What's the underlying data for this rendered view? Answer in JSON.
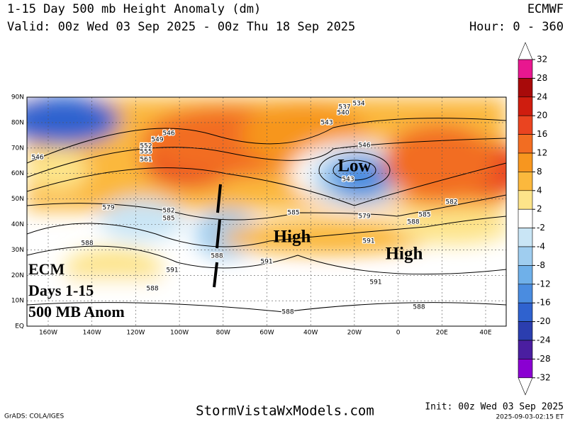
{
  "header": {
    "title": "1-15 Day 500 mb Height Anomaly (dm)",
    "valid": "Valid: 00z Wed 03 Sep 2025 - 00z Thu 18 Sep 2025",
    "model": "ECMWF",
    "hours": "Hour: 0 - 360"
  },
  "map": {
    "lat_labels": [
      "90N",
      "80N",
      "70N",
      "60N",
      "50N",
      "40N",
      "30N",
      "20N",
      "10N",
      "EQ"
    ],
    "lon_labels": [
      "160W",
      "140W",
      "120W",
      "100W",
      "80W",
      "60W",
      "40W",
      "20W",
      "0",
      "20E",
      "40E"
    ],
    "contour_labels": [
      534,
      537,
      540,
      543,
      546,
      549,
      552,
      555,
      561,
      546,
      543,
      546,
      579,
      582,
      585,
      585,
      579,
      585,
      582,
      588,
      591,
      588,
      591,
      591,
      588,
      591,
      588,
      588,
      588
    ],
    "annotations": [
      "Low",
      "High",
      "High"
    ],
    "caption": [
      "ECM",
      "Days 1-15",
      "500 MB Anom"
    ]
  },
  "colorbar": {
    "ticks": [
      32,
      28,
      24,
      20,
      16,
      12,
      8,
      4,
      2,
      -2,
      -4,
      -8,
      -12,
      -16,
      -20,
      -24,
      -28,
      -32
    ],
    "colors": [
      "#ffffff",
      "#e8178f",
      "#a80a0a",
      "#cf1d0f",
      "#ea4420",
      "#f26d22",
      "#f7961f",
      "#fbb83d",
      "#fde48a",
      "#ffffff",
      "#c9e5f5",
      "#9fcdef",
      "#6fb0e9",
      "#4a8ce0",
      "#2f62cf",
      "#2b3eaf",
      "#4a1ea0",
      "#8a00d2",
      "#ffffff"
    ]
  },
  "footer": {
    "credit": "GrADS: COLA/IGES",
    "site": "StormVistaWxModels.com",
    "init": "Init: 00z Wed 03 Sep 2025",
    "stamp": "2025-09-03-02:15 ET"
  }
}
